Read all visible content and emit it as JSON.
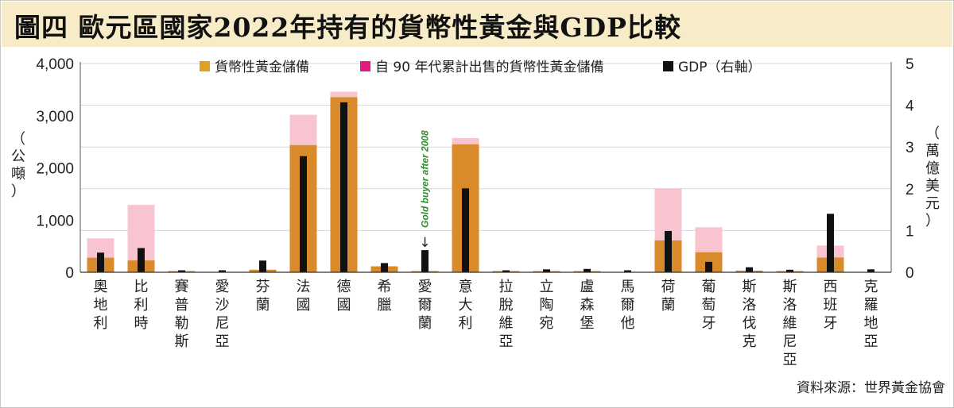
{
  "title": "圖四 歐元區國家2022年持有的貨幣性黃金與GDP比較",
  "source": "資料來源：世界黃金協會",
  "colors": {
    "gold": "#d98a2b",
    "sold": "#f7c4cf",
    "gdp": "#111111",
    "legend_gold": "#e1a020",
    "legend_sold": "#e8197d",
    "title_bg": "#f8ecc8",
    "annotation": "#2e8b2e"
  },
  "chart_data": {
    "type": "bar",
    "title": "歐元區國家2022年持有的貨幣性黃金與GDP比較",
    "ylabel": "（公噸）",
    "y2label": "（萬億美元）",
    "ylim": [
      0,
      4000
    ],
    "y2lim": [
      0,
      5
    ],
    "yticks": [
      "0",
      "1,000",
      "2,000",
      "3,000",
      "4,000"
    ],
    "y2ticks": [
      "0",
      "1",
      "2",
      "3",
      "4",
      "5"
    ],
    "grid": true,
    "legend_placement": "top",
    "categories": [
      "奧地利",
      "比利時",
      "賽普勒斯",
      "愛沙尼亞",
      "芬蘭",
      "法國",
      "德國",
      "希臘",
      "愛爾蘭",
      "意大利",
      "拉脫維亞",
      "立陶宛",
      "盧森堡",
      "馬爾他",
      "荷蘭",
      "葡萄牙",
      "斯洛伐克",
      "斯洛維尼亞",
      "西班牙",
      "克羅地亞"
    ],
    "series": [
      {
        "name": "貨幣性黃金儲備",
        "axis": "left",
        "values": [
          280,
          227,
          14,
          0,
          49,
          2437,
          3355,
          114,
          6,
          2452,
          7,
          6,
          2,
          0,
          612,
          383,
          32,
          3,
          282,
          0
        ]
      },
      {
        "name": "自 90 年代累計出售的貨幣性黃金儲備",
        "axis": "left",
        "stacked": true,
        "values": [
          370,
          1063,
          0,
          0,
          0,
          580,
          105,
          0,
          0,
          120,
          0,
          0,
          0,
          0,
          1000,
          480,
          0,
          0,
          230,
          0
        ]
      },
      {
        "name": "GDP（右軸）",
        "axis": "right",
        "values": [
          0.47,
          0.58,
          0.03,
          0.04,
          0.28,
          2.78,
          4.07,
          0.22,
          0.53,
          2.01,
          0.04,
          0.07,
          0.08,
          0.02,
          0.99,
          0.25,
          0.12,
          0.06,
          1.4,
          0.07
        ]
      }
    ],
    "annotation": {
      "category": "愛爾蘭",
      "text": "Gold buyer after 2008",
      "arrow": "↓"
    }
  }
}
